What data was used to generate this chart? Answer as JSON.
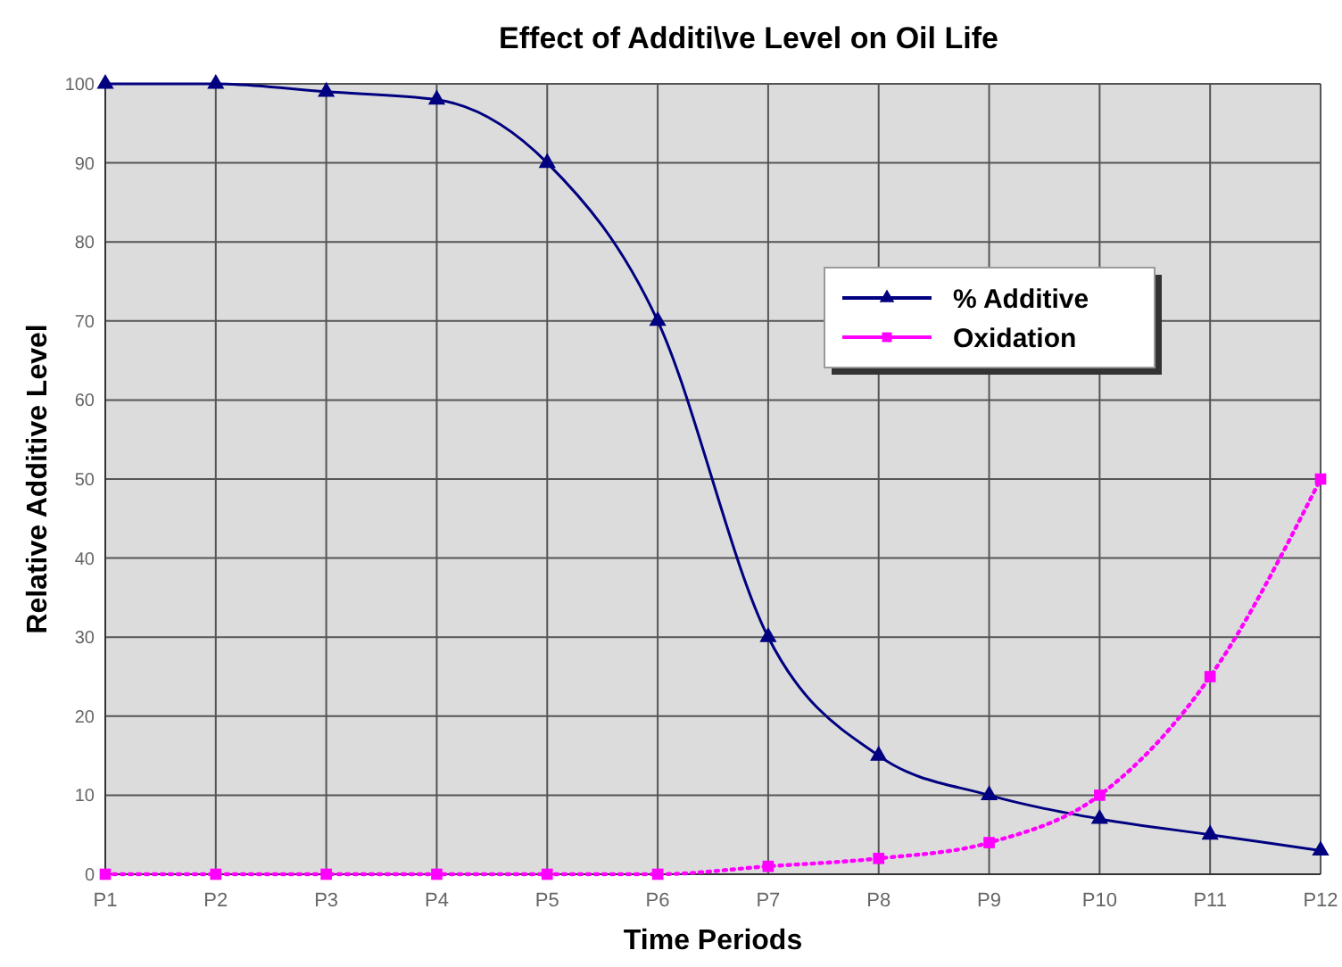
{
  "chart_data": {
    "type": "line",
    "title": "Effect of Additi\\ve Level on Oil Life",
    "xlabel": "Time Periods",
    "ylabel": "Relative Additive Level",
    "categories": [
      "P1",
      "P2",
      "P3",
      "P4",
      "P5",
      "P6",
      "P7",
      "P8",
      "P9",
      "P10",
      "P11",
      "P12"
    ],
    "series": [
      {
        "name": "% Additive",
        "color": "#000080",
        "marker": "triangle",
        "line_style": "solid",
        "values": [
          100,
          100,
          99,
          98,
          90,
          70,
          30,
          15,
          10,
          7,
          5,
          3
        ]
      },
      {
        "name": "Oxidation",
        "color": "#ff00ff",
        "marker": "square",
        "line_style": "dotted",
        "values": [
          0,
          0,
          0,
          0,
          0,
          0,
          1,
          2,
          4,
          10,
          25,
          50
        ]
      }
    ],
    "ylim": [
      0,
      100
    ],
    "yticks": [
      0,
      10,
      20,
      30,
      40,
      50,
      60,
      70,
      80,
      90,
      100
    ],
    "grid": true,
    "legend": "top right"
  }
}
